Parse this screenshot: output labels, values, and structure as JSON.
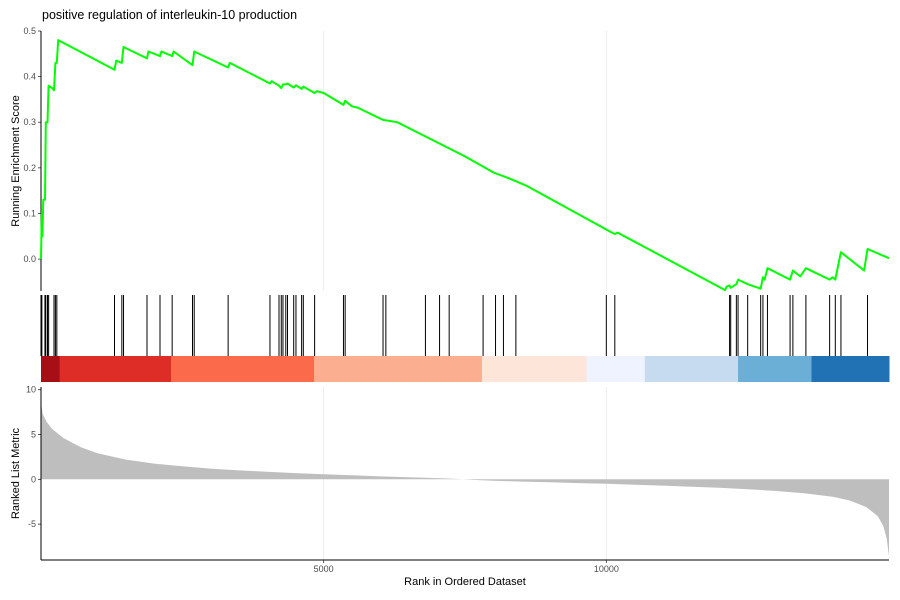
{
  "chart_data": {
    "type": "line",
    "title": "positive regulation of interleukin-10 production",
    "xlabel": "Rank in Ordered Dataset",
    "xlim": [
      0,
      15000
    ],
    "x_ticks": [
      "5000",
      "10000"
    ],
    "x_tick_values": [
      5000,
      10000
    ],
    "grid": "vertical gridlines",
    "panels": {
      "running_score": {
        "ylabel": "Running Enrichment Score",
        "ylim": [
          -0.07,
          0.5
        ],
        "y_tick_values": [
          0.0,
          0.1,
          0.2,
          0.3,
          0.4,
          0.5
        ],
        "y_ticks": [
          "0.0",
          "0.1",
          "0.2",
          "0.3",
          "0.4",
          "0.5"
        ],
        "line_color": "#00ff00",
        "points": [
          [
            0,
            0.0
          ],
          [
            15,
            0.1
          ],
          [
            25,
            0.05
          ],
          [
            40,
            0.13
          ],
          [
            70,
            0.13
          ],
          [
            85,
            0.3
          ],
          [
            115,
            0.3
          ],
          [
            135,
            0.38
          ],
          [
            195,
            0.375
          ],
          [
            230,
            0.37
          ],
          [
            255,
            0.43
          ],
          [
            280,
            0.43
          ],
          [
            305,
            0.48
          ],
          [
            1300,
            0.415
          ],
          [
            1330,
            0.435
          ],
          [
            1430,
            0.43
          ],
          [
            1460,
            0.465
          ],
          [
            1875,
            0.44
          ],
          [
            1900,
            0.455
          ],
          [
            2105,
            0.445
          ],
          [
            2130,
            0.455
          ],
          [
            2320,
            0.445
          ],
          [
            2345,
            0.455
          ],
          [
            2680,
            0.425
          ],
          [
            2710,
            0.455
          ],
          [
            3310,
            0.42
          ],
          [
            3340,
            0.43
          ],
          [
            4050,
            0.385
          ],
          [
            4080,
            0.39
          ],
          [
            4210,
            0.38
          ],
          [
            4250,
            0.375
          ],
          [
            4280,
            0.383
          ],
          [
            4330,
            0.383
          ],
          [
            4360,
            0.385
          ],
          [
            4470,
            0.376
          ],
          [
            4510,
            0.381
          ],
          [
            4610,
            0.373
          ],
          [
            4640,
            0.378
          ],
          [
            4840,
            0.364
          ],
          [
            4880,
            0.368
          ],
          [
            5000,
            0.364
          ],
          [
            5350,
            0.338
          ],
          [
            5380,
            0.347
          ],
          [
            5500,
            0.335
          ],
          [
            5600,
            0.332
          ],
          [
            6050,
            0.305
          ],
          [
            6300,
            0.3
          ],
          [
            7500,
            0.225
          ],
          [
            8000,
            0.19
          ],
          [
            8300,
            0.176
          ],
          [
            8600,
            0.16
          ],
          [
            10100,
            0.058
          ],
          [
            10150,
            0.055
          ],
          [
            10200,
            0.058
          ],
          [
            12100,
            -0.068
          ],
          [
            12130,
            -0.06
          ],
          [
            12180,
            -0.058
          ],
          [
            12200,
            -0.063
          ],
          [
            12300,
            -0.055
          ],
          [
            12330,
            -0.045
          ],
          [
            12500,
            -0.055
          ],
          [
            12730,
            -0.065
          ],
          [
            12770,
            -0.04
          ],
          [
            12800,
            -0.045
          ],
          [
            12850,
            -0.02
          ],
          [
            13250,
            -0.045
          ],
          [
            13300,
            -0.025
          ],
          [
            13430,
            -0.038
          ],
          [
            13530,
            -0.02
          ],
          [
            13950,
            -0.045
          ],
          [
            14000,
            -0.04
          ],
          [
            14050,
            -0.045
          ],
          [
            14150,
            0.015
          ],
          [
            14560,
            -0.025
          ],
          [
            14620,
            0.022
          ],
          [
            15000,
            0.002
          ]
        ]
      },
      "gene_hits": {
        "positions": [
          15,
          70,
          85,
          115,
          135,
          230,
          255,
          280,
          1300,
          1430,
          1460,
          1875,
          2105,
          2320,
          2680,
          2710,
          3310,
          4050,
          4210,
          4250,
          4280,
          4330,
          4360,
          4470,
          4510,
          4610,
          4640,
          4840,
          5350,
          5380,
          6050,
          6100,
          6800,
          7050,
          7220,
          7820,
          8040,
          8180,
          8400,
          10000,
          10150,
          12180,
          12200,
          12300,
          12330,
          12500,
          12730,
          12770,
          12850,
          13250,
          13300,
          13530,
          13950,
          14050,
          14150,
          14620
        ]
      },
      "rank_bands": {
        "segments": [
          {
            "start": 0,
            "end": 330,
            "color": "#a50f15"
          },
          {
            "start": 330,
            "end": 2300,
            "color": "#de2d26"
          },
          {
            "start": 2300,
            "end": 4830,
            "color": "#fb6a4a"
          },
          {
            "start": 4830,
            "end": 7800,
            "color": "#fcae91"
          },
          {
            "start": 7800,
            "end": 9650,
            "color": "#fee5d9"
          },
          {
            "start": 9650,
            "end": 10680,
            "color": "#eff3ff"
          },
          {
            "start": 10680,
            "end": 12330,
            "color": "#c6dbef"
          },
          {
            "start": 12330,
            "end": 13630,
            "color": "#6baed6"
          },
          {
            "start": 13630,
            "end": 15000,
            "color": "#2171b5"
          }
        ]
      },
      "ranked_metric": {
        "ylabel": "Ranked List Metric",
        "ylim": [
          -9,
          10.3
        ],
        "y_tick_values": [
          10,
          5,
          0,
          -5
        ],
        "y_ticks": [
          "10",
          "5",
          "0",
          "-5"
        ],
        "fill_color": "#bebebe",
        "profile": [
          [
            0,
            8.6
          ],
          [
            30,
            7.3
          ],
          [
            100,
            6.4
          ],
          [
            200,
            5.6
          ],
          [
            400,
            4.6
          ],
          [
            700,
            3.6
          ],
          [
            1000,
            2.9
          ],
          [
            1500,
            2.2
          ],
          [
            2000,
            1.75
          ],
          [
            2500,
            1.45
          ],
          [
            3000,
            1.2
          ],
          [
            3500,
            1.0
          ],
          [
            4000,
            0.85
          ],
          [
            4500,
            0.7
          ],
          [
            5000,
            0.57
          ],
          [
            5500,
            0.45
          ],
          [
            6000,
            0.33
          ],
          [
            6500,
            0.23
          ],
          [
            7000,
            0.14
          ],
          [
            7300,
            0.07
          ],
          [
            7450,
            0.0
          ],
          [
            7700,
            -0.08
          ],
          [
            8000,
            -0.15
          ],
          [
            8500,
            -0.25
          ],
          [
            9000,
            -0.33
          ],
          [
            9500,
            -0.42
          ],
          [
            10000,
            -0.5
          ],
          [
            10500,
            -0.6
          ],
          [
            11000,
            -0.7
          ],
          [
            11500,
            -0.82
          ],
          [
            12000,
            -0.95
          ],
          [
            12500,
            -1.1
          ],
          [
            13000,
            -1.3
          ],
          [
            13500,
            -1.55
          ],
          [
            14000,
            -1.95
          ],
          [
            14300,
            -2.35
          ],
          [
            14600,
            -3.1
          ],
          [
            14800,
            -4.1
          ],
          [
            14900,
            -5.2
          ],
          [
            14960,
            -6.6
          ],
          [
            15000,
            -8.6
          ]
        ]
      }
    }
  }
}
